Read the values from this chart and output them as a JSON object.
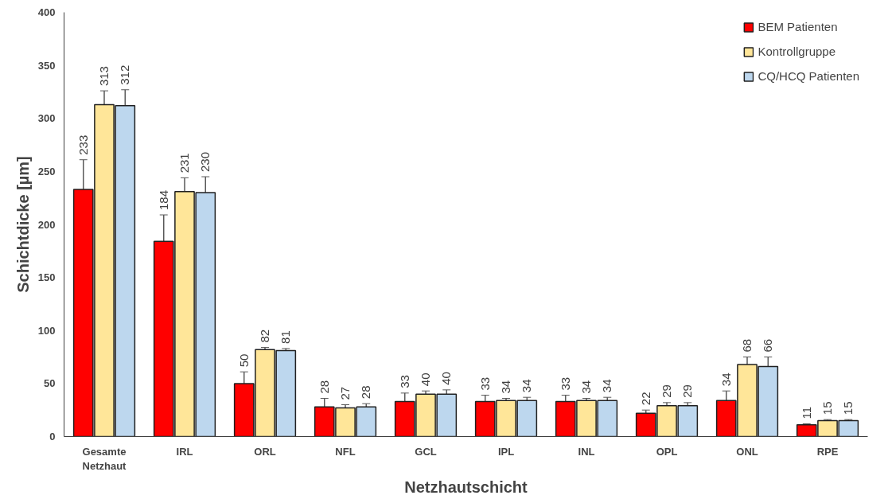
{
  "chart_data": {
    "type": "bar",
    "xlabel": "Netzhautschicht",
    "ylabel": "Schichtdicke [µm]",
    "categories": [
      "Gesamte\nNetzhaut",
      "IRL",
      "ORL",
      "NFL",
      "GCL",
      "IPL",
      "INL",
      "OPL",
      "ONL",
      "RPE"
    ],
    "series": [
      {
        "name": "BEM Patienten",
        "color": "#ff0000",
        "values": [
          233,
          184,
          50,
          28,
          33,
          33,
          33,
          22,
          34,
          11
        ],
        "errors": [
          28,
          25,
          11,
          8,
          8,
          6,
          6,
          3,
          9,
          1
        ]
      },
      {
        "name": "Kontrollgruppe",
        "color": "#ffe699",
        "values": [
          313,
          231,
          82,
          27,
          40,
          34,
          34,
          29,
          68,
          15
        ],
        "errors": [
          13,
          13,
          2,
          3,
          3,
          2,
          2,
          3,
          7,
          1
        ]
      },
      {
        "name": "CQ/HCQ Patienten",
        "color": "#bdd7ee",
        "values": [
          312,
          230,
          81,
          28,
          40,
          34,
          34,
          29,
          66,
          15
        ],
        "errors": [
          15,
          15,
          2,
          3,
          4,
          3,
          3,
          3,
          9,
          1
        ]
      }
    ],
    "ylim": [
      0,
      400
    ],
    "yticks": [
      0,
      50,
      100,
      150,
      200,
      250,
      300,
      350,
      400
    ],
    "data_labels": true,
    "legend": "top right",
    "grid": false
  }
}
